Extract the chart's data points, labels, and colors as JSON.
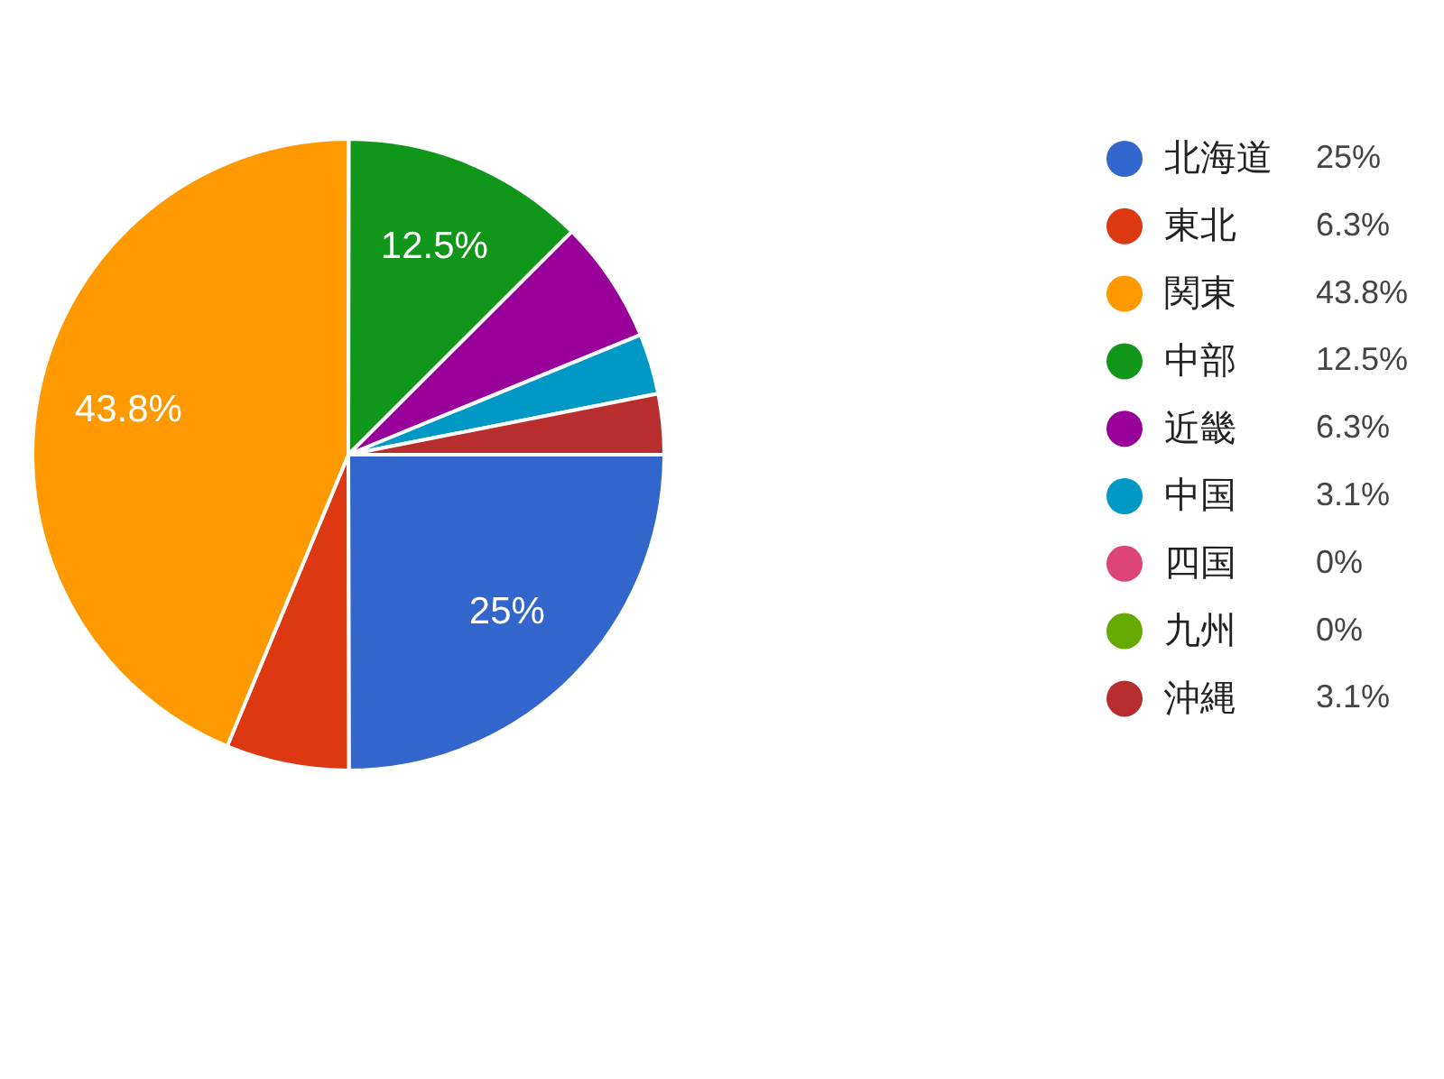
{
  "chart_data": {
    "type": "pie",
    "categories": [
      "北海道",
      "東北",
      "関東",
      "中部",
      "近畿",
      "中国",
      "四国",
      "九州",
      "沖縄"
    ],
    "values": [
      25,
      6.3,
      43.8,
      12.5,
      6.3,
      3.1,
      0,
      0,
      3.1
    ],
    "value_labels": [
      "25%",
      "6.3%",
      "43.8%",
      "12.5%",
      "6.3%",
      "3.1%",
      "0%",
      "0%",
      "3.1%"
    ],
    "colors": [
      "#3366cc",
      "#dc3912",
      "#ff9900",
      "#109618",
      "#990099",
      "#0099c6",
      "#dd4477",
      "#66aa00",
      "#b82e2e"
    ],
    "legend": "right"
  }
}
